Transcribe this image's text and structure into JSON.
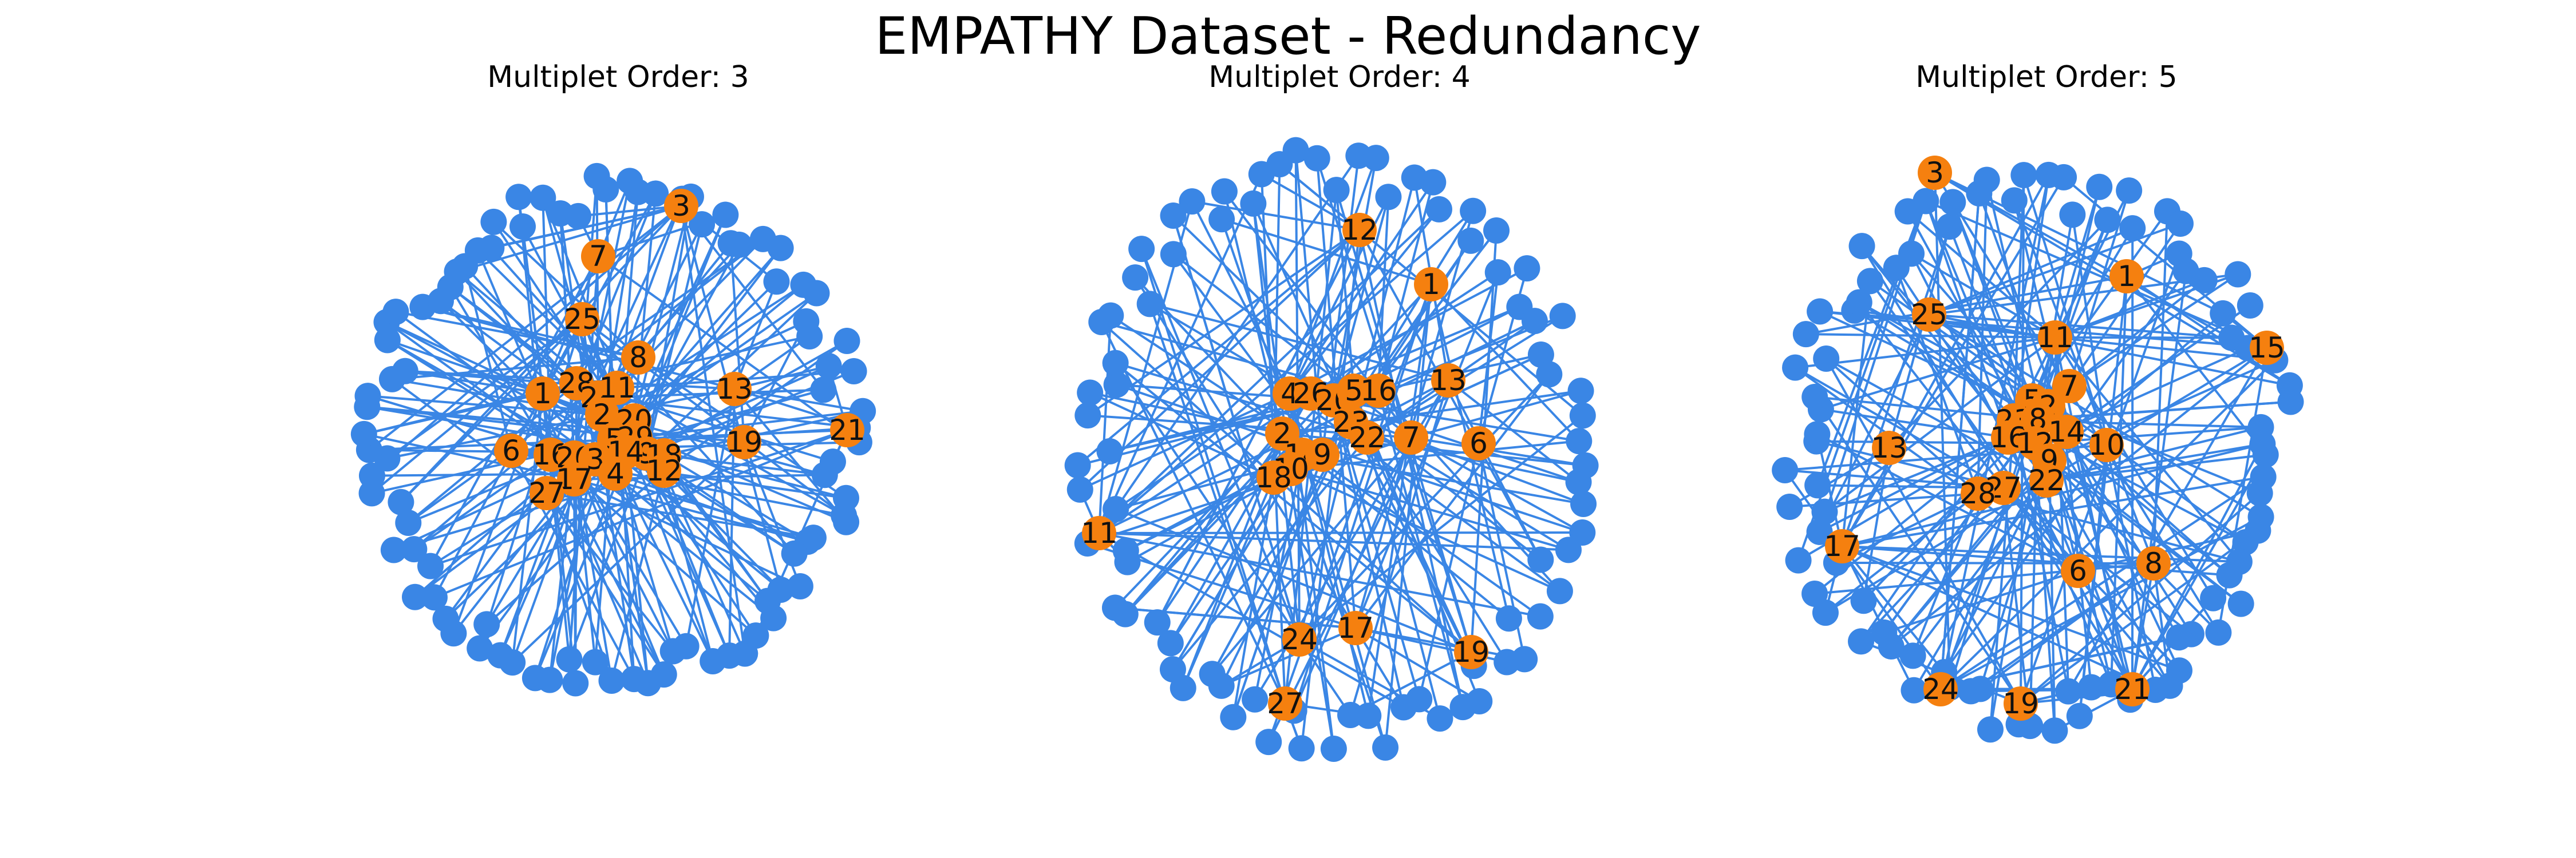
{
  "title": "EMPATHY Dataset - Redundancy",
  "colors": {
    "edge": "#3a86e5",
    "peripheral_node": "#3a86e5",
    "labeled_node": "#f5800f",
    "label_text": "#111111"
  },
  "panels": [
    {
      "title": "Multiplet Order: 3",
      "order": 3,
      "peripheral_node_count": 90,
      "labels": [
        "1",
        "2",
        "3",
        "4",
        "5",
        "6",
        "7",
        "8",
        "9",
        "10",
        "11",
        "12",
        "13",
        "14",
        "15",
        "16",
        "17",
        "18",
        "19",
        "20",
        "21",
        "22",
        "23",
        "24",
        "25",
        "26",
        "27",
        "28",
        "29"
      ]
    },
    {
      "title": "Multiplet Order: 4",
      "order": 4,
      "peripheral_node_count": 80,
      "labels": [
        "1",
        "2",
        "4",
        "5",
        "6",
        "7",
        "9",
        "10",
        "11",
        "12",
        "13",
        "14",
        "16",
        "17",
        "18",
        "19",
        "20",
        "22",
        "23",
        "24",
        "26",
        "27"
      ]
    },
    {
      "title": "Multiplet Order: 5",
      "order": 5,
      "peripheral_node_count": 88,
      "labels": [
        "1",
        "2",
        "3",
        "5",
        "6",
        "7",
        "8",
        "9",
        "10",
        "11",
        "12",
        "13",
        "14",
        "15",
        "16",
        "17",
        "19",
        "21",
        "22",
        "23",
        "24",
        "25",
        "27",
        "28"
      ]
    }
  ]
}
